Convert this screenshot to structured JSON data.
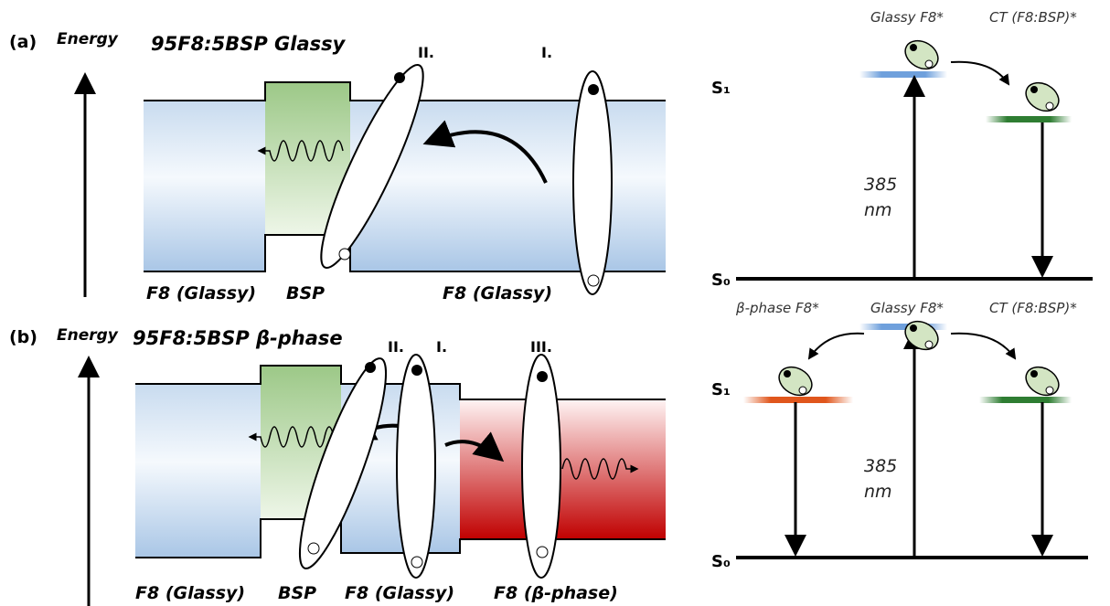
{
  "panels": [
    {
      "label": "(a)",
      "axis": "Energy",
      "title": "95F8:5BSP Glassy",
      "steps": [
        "II.",
        "I."
      ],
      "regions": [
        "F8 (Glassy)",
        "BSP",
        "F8 (Glassy)"
      ],
      "levels": {
        "s1": "S₁",
        "s0": "S₀"
      },
      "states": [
        "Glassy F8*",
        "CT (F8:BSP)*"
      ],
      "excitation": [
        "385",
        "nm"
      ]
    },
    {
      "label": "(b)",
      "axis": "Energy",
      "title": "95F8:5BSP β-phase",
      "steps": [
        "II.",
        "I.",
        "III."
      ],
      "regions": [
        "F8 (Glassy)",
        "BSP",
        "F8 (Glassy)",
        "F8 (β-phase)"
      ],
      "levels": {
        "s1": "S₁",
        "s0": "S₀"
      },
      "states": [
        "β-phase F8*",
        "Glassy F8*",
        "CT (F8:BSP)*"
      ],
      "excitation": [
        "385",
        "nm"
      ]
    }
  ]
}
